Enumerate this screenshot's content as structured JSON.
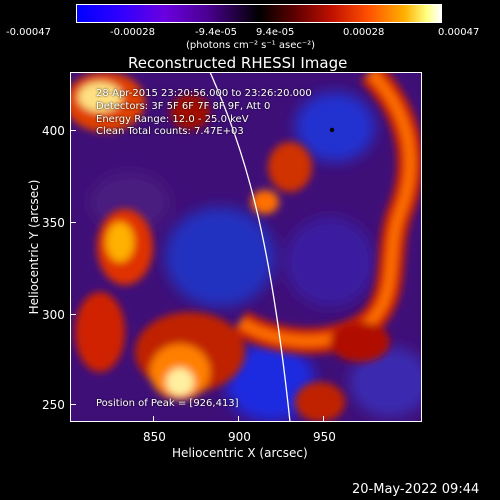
{
  "colorbar": {
    "ticks": [
      "-0.00047",
      "-0.00028",
      "-9.4e-05",
      "9.4e-05",
      "0.00028",
      "0.00047"
    ],
    "units": "(photons cm⁻² s⁻¹ asec⁻²)",
    "colors": [
      "#0000ff",
      "#3a00ff",
      "#7a00d0",
      "#2d0054",
      "#000000",
      "#600000",
      "#c01000",
      "#ff4000",
      "#ff9000",
      "#ffe060",
      "#ffffff"
    ]
  },
  "plot": {
    "title": "Reconstructed RHESSI Image",
    "xlabel": "Heliocentric X (arcsec)",
    "ylabel": "Heliocentric Y (arcsec)",
    "xticks": [
      "850",
      "900",
      "950"
    ],
    "yticks": [
      "400",
      "350",
      "300",
      "250"
    ],
    "xlim": [
      810,
      1000
    ],
    "ylim": [
      240,
      418
    ]
  },
  "annotations": {
    "time": "28-Apr-2015 23:20:56.000 to 23:26:20.000",
    "detectors": "Detectors: 3F 5F 6F 7F 8F 9F, Att 0",
    "energy": "Energy Range: 12.0 - 25.0 keV",
    "clean": "Clean    Total counts: 7.47E+03",
    "peak": "Position of Peak = [926,413]"
  },
  "footer": {
    "date": "20-May-2022 09:44"
  }
}
